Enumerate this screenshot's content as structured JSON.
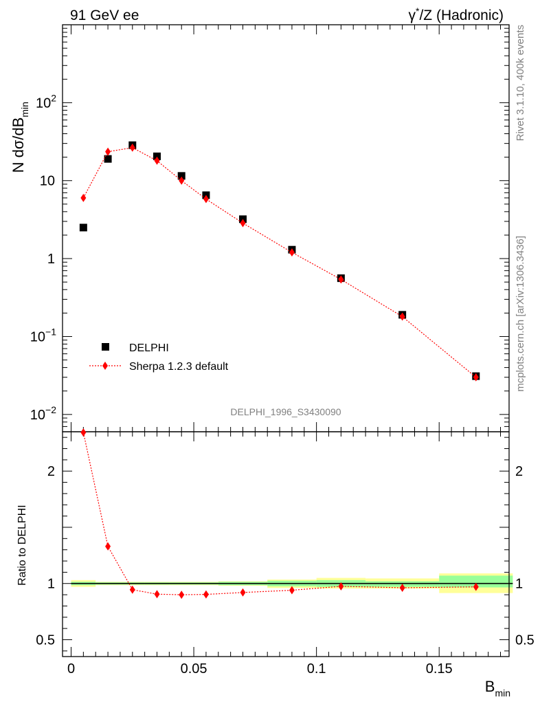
{
  "header": {
    "left_label": "91 GeV ee",
    "right_label_prefix": "γ",
    "right_label_sup": "*",
    "right_label_suffix": "/Z (Hadronic)"
  },
  "side_labels": {
    "rivet": "Rivet 3.1.10,  400k events",
    "mcplots": "mcplots.cern.ch [arXiv:1306.3436]"
  },
  "analysis_label": "DELPHI_1996_S3430090",
  "chart_data": [
    {
      "type": "scatter",
      "panel": "main",
      "ylabel_main": "N dσ/dB",
      "ylabel_sub": "min",
      "yscale": "log",
      "ylim": [
        0.006,
        1000
      ],
      "xlim": [
        -0.0035,
        0.1785
      ],
      "yticks": [
        {
          "v": 0.01,
          "base": "10",
          "exp": "−2"
        },
        {
          "v": 0.1,
          "base": "10",
          "exp": "−1"
        },
        {
          "v": 1,
          "base": "1",
          "exp": ""
        },
        {
          "v": 10,
          "base": "10",
          "exp": ""
        },
        {
          "v": 100,
          "base": "10",
          "exp": "2"
        }
      ],
      "legend_position": "bottom-left",
      "series": [
        {
          "name": "DELPHI",
          "color": "#000000",
          "marker": "square",
          "x": [
            0.005,
            0.015,
            0.025,
            0.035,
            0.045,
            0.055,
            0.07,
            0.09,
            0.11,
            0.135,
            0.165
          ],
          "values": [
            2.5,
            19,
            28.5,
            20.5,
            11.5,
            6.5,
            3.2,
            1.3,
            0.56,
            0.19,
            0.031
          ]
        },
        {
          "name": "Sherpa 1.2.3 default",
          "color": "#ff0000",
          "marker": "diamond",
          "line": "dotted",
          "x": [
            0.005,
            0.015,
            0.025,
            0.035,
            0.045,
            0.055,
            0.07,
            0.09,
            0.11,
            0.135,
            0.165
          ],
          "values": [
            6.0,
            23.5,
            26.5,
            18.0,
            10.0,
            5.8,
            2.85,
            1.2,
            0.54,
            0.18,
            0.03
          ]
        }
      ]
    },
    {
      "type": "scatter",
      "panel": "ratio",
      "ylabel": "Ratio to DELPHI",
      "xlabel_main": "B",
      "xlabel_sub": "min",
      "ylim": [
        0.35,
        2.35
      ],
      "xlim": [
        -0.0035,
        0.1785
      ],
      "xticks": [
        {
          "v": 0,
          "label": "0"
        },
        {
          "v": 0.05,
          "label": "0.05"
        },
        {
          "v": 0.1,
          "label": "0.1"
        },
        {
          "v": 0.15,
          "label": "0.15"
        }
      ],
      "yticks": [
        {
          "v": 0.5,
          "label": "0.5"
        },
        {
          "v": 1,
          "label": "1"
        },
        {
          "v": 2,
          "label": "2"
        }
      ],
      "bands": [
        {
          "x0": 0.0,
          "x1": 0.01,
          "y_inner": [
            0.985,
            1.015
          ],
          "y_outer": [
            0.97,
            1.03
          ]
        },
        {
          "x0": 0.01,
          "x1": 0.02,
          "y_inner": [
            0.99,
            1.01
          ],
          "y_outer": [
            0.985,
            1.015
          ]
        },
        {
          "x0": 0.02,
          "x1": 0.03,
          "y_inner": [
            0.99,
            1.01
          ],
          "y_outer": [
            0.985,
            1.015
          ]
        },
        {
          "x0": 0.03,
          "x1": 0.04,
          "y_inner": [
            0.99,
            1.01
          ],
          "y_outer": [
            0.985,
            1.015
          ]
        },
        {
          "x0": 0.04,
          "x1": 0.05,
          "y_inner": [
            0.99,
            1.01
          ],
          "y_outer": [
            0.985,
            1.015
          ]
        },
        {
          "x0": 0.05,
          "x1": 0.06,
          "y_inner": [
            0.99,
            1.01
          ],
          "y_outer": [
            0.985,
            1.015
          ]
        },
        {
          "x0": 0.06,
          "x1": 0.08,
          "y_inner": [
            0.985,
            1.015
          ],
          "y_outer": [
            0.98,
            1.02
          ]
        },
        {
          "x0": 0.08,
          "x1": 0.1,
          "y_inner": [
            0.975,
            1.025
          ],
          "y_outer": [
            0.96,
            1.035
          ]
        },
        {
          "x0": 0.1,
          "x1": 0.12,
          "y_inner": [
            0.97,
            1.03
          ],
          "y_outer": [
            0.955,
            1.05
          ]
        },
        {
          "x0": 0.12,
          "x1": 0.15,
          "y_inner": [
            0.97,
            1.02
          ],
          "y_outer": [
            0.955,
            1.045
          ]
        },
        {
          "x0": 0.15,
          "x1": 0.18,
          "y_inner": [
            0.965,
            1.07
          ],
          "y_outer": [
            0.915,
            1.09
          ]
        }
      ],
      "series": [
        {
          "name": "Sherpa 1.2.3 default",
          "color": "#ff0000",
          "marker": "diamond",
          "line": "dotted",
          "x": [
            0.005,
            0.015,
            0.025,
            0.035,
            0.045,
            0.055,
            0.07,
            0.09,
            0.11,
            0.135,
            0.165
          ],
          "values": [
            2.35,
            1.33,
            0.945,
            0.905,
            0.9,
            0.903,
            0.92,
            0.94,
            0.975,
            0.962,
            0.97
          ]
        }
      ]
    }
  ]
}
